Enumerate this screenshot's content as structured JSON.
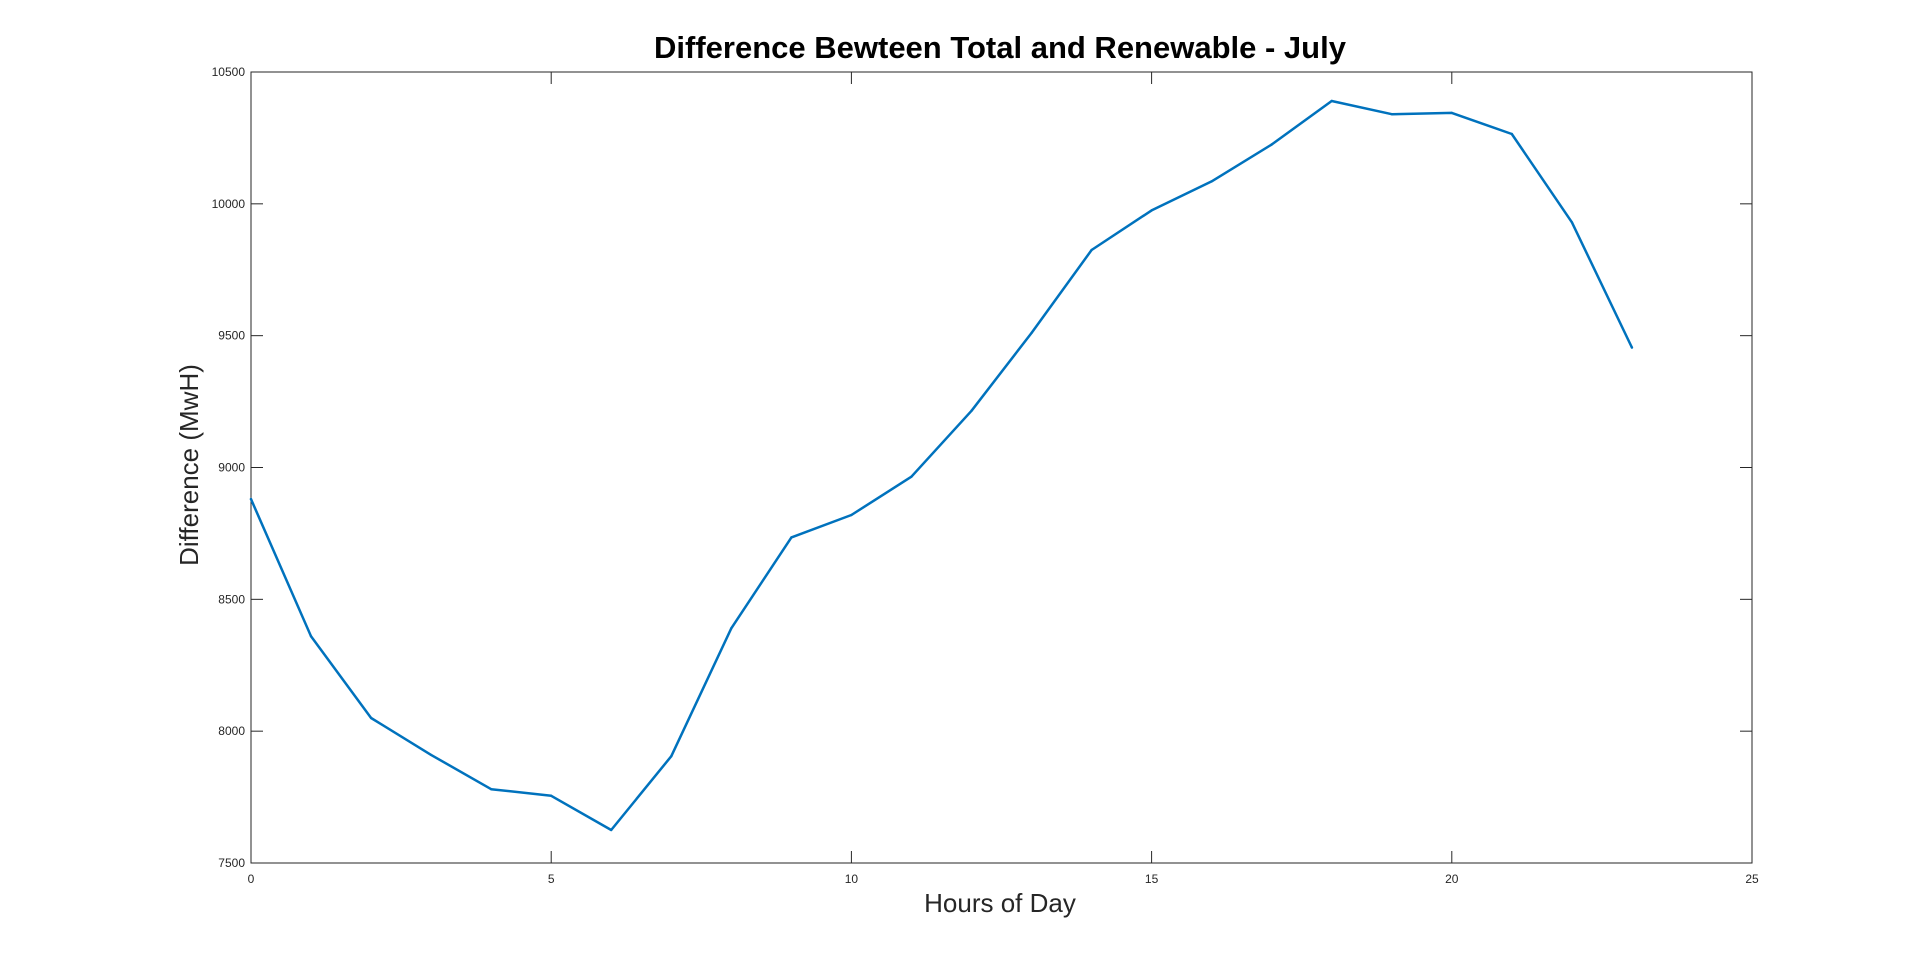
{
  "chart_data": {
    "type": "line",
    "title": "Difference Bewteen Total and Renewable - July",
    "xlabel": "Hours of Day",
    "ylabel": "Difference (MwH)",
    "xlim": [
      0,
      25
    ],
    "ylim": [
      7500,
      10500
    ],
    "xticks": [
      0,
      5,
      10,
      15,
      20,
      25
    ],
    "yticks": [
      7500,
      8000,
      8500,
      9000,
      9500,
      10000,
      10500
    ],
    "grid": false,
    "legend": "none",
    "line_color": "#0072BD",
    "axis_color": "#262626",
    "series": [
      {
        "x": [
          0,
          1,
          2,
          3,
          4,
          5,
          6,
          7,
          8,
          9,
          10,
          11,
          12,
          13,
          14,
          15,
          16,
          17,
          18,
          19,
          20,
          21,
          22,
          23
        ],
        "values": [
          8880,
          8360,
          8050,
          7910,
          7780,
          7755,
          7625,
          7905,
          8390,
          8735,
          8820,
          8965,
          9215,
          9510,
          9825,
          9975,
          10085,
          10225,
          10390,
          10340,
          10345,
          10265,
          9930,
          9455
        ]
      }
    ]
  }
}
